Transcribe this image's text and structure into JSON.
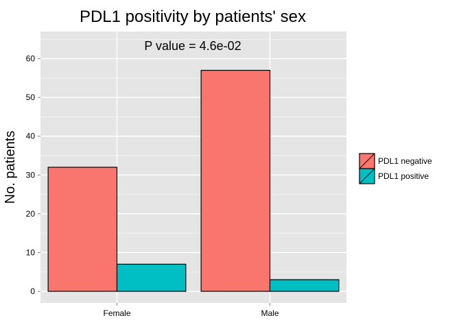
{
  "chart_data": {
    "type": "bar",
    "title": "PDL1 positivity by patients' sex",
    "annotation": "P value = 4.6e-02",
    "xlabel": "",
    "ylabel": "No. patients",
    "categories": [
      "Female",
      "Male"
    ],
    "series": [
      {
        "name": "PDL1 negative",
        "values": [
          32,
          57
        ],
        "color": "#F8766D"
      },
      {
        "name": "PDL1 positive",
        "values": [
          7,
          3
        ],
        "color": "#00BFC4"
      }
    ],
    "ylim": [
      -3,
      67
    ],
    "yticks": [
      0,
      10,
      20,
      30,
      40,
      50,
      60
    ],
    "grid": true,
    "legend_position": "right"
  }
}
